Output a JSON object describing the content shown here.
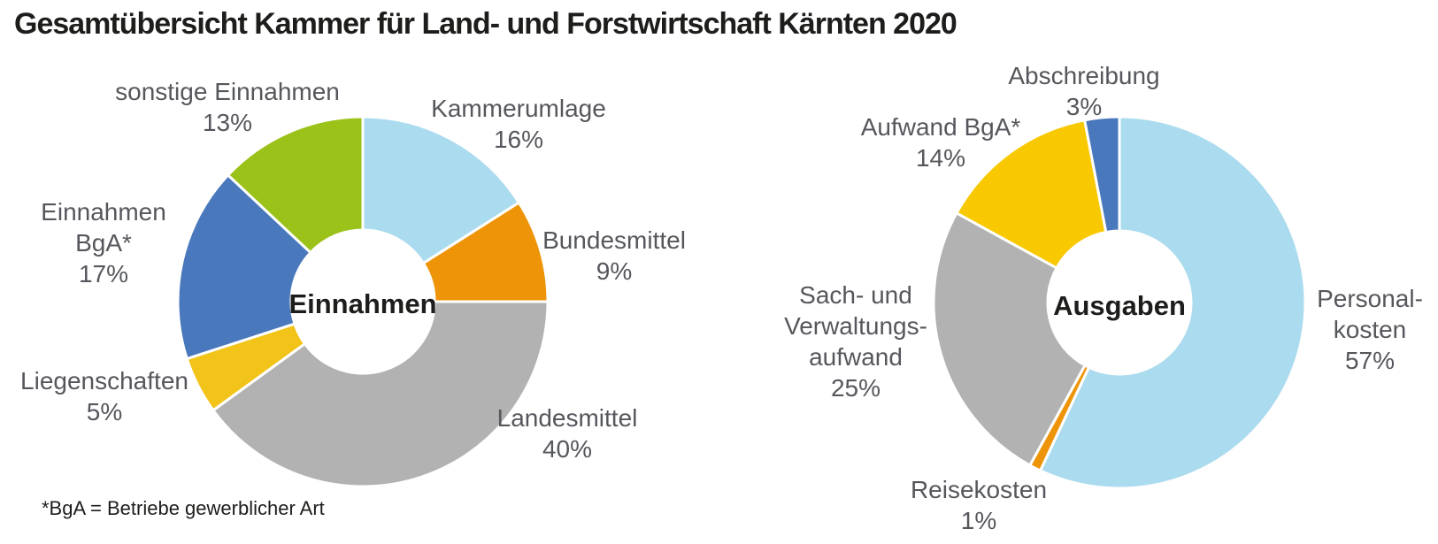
{
  "title": "Gesamtübersicht Kammer für Land- und Forstwirtschaft Kärnten 2020",
  "footnote": "*BgA = Betriebe gewerblicher Art",
  "colors": {
    "light_blue": "#abdbee",
    "orange": "#ee9408",
    "gray": "#b2b2b2",
    "yellow": "#f2c318",
    "gold": "#f8c800",
    "blue": "#4a78bc",
    "green": "#9ac219",
    "label_text": "#55575c",
    "title_text": "#1d1d1b",
    "background": "#ffffff",
    "slice_gap": "#ffffff"
  },
  "chart_data": [
    {
      "type": "pie",
      "name": "Einnahmen",
      "center_label": "Einnahmen",
      "donut": true,
      "donut_hole_ratio": 0.39,
      "start_angle_deg": 0,
      "direction": "clockwise",
      "slices": [
        {
          "label": "Kammerumlage",
          "label_lines": [
            "Kammerumlage"
          ],
          "value": 16,
          "pct_label": "16%",
          "color": "#abdbee"
        },
        {
          "label": "Bundesmittel",
          "label_lines": [
            "Bundesmittel"
          ],
          "value": 9,
          "pct_label": "9%",
          "color": "#ee9408"
        },
        {
          "label": "Landesmittel",
          "label_lines": [
            "Landesmittel"
          ],
          "value": 40,
          "pct_label": "40%",
          "color": "#b2b2b2"
        },
        {
          "label": "Liegenschaften",
          "label_lines": [
            "Liegenschaften"
          ],
          "value": 5,
          "pct_label": "5%",
          "color": "#f2c318"
        },
        {
          "label": "Einnahmen BgA*",
          "label_lines": [
            "Einnahmen",
            "BgA*"
          ],
          "value": 17,
          "pct_label": "17%",
          "color": "#4a78bc"
        },
        {
          "label": "sonstige Einnahmen",
          "label_lines": [
            "sonstige Einnahmen"
          ],
          "value": 13,
          "pct_label": "13%",
          "color": "#9ac219"
        }
      ]
    },
    {
      "type": "pie",
      "name": "Ausgaben",
      "center_label": "Ausgaben",
      "donut": true,
      "donut_hole_ratio": 0.39,
      "start_angle_deg": 0,
      "direction": "clockwise",
      "slices": [
        {
          "label": "Personalkosten",
          "label_lines": [
            "Personal-",
            "kosten"
          ],
          "value": 57,
          "pct_label": "57%",
          "color": "#abdbee"
        },
        {
          "label": "Reisekosten",
          "label_lines": [
            "Reisekosten"
          ],
          "value": 1,
          "pct_label": "1%",
          "color": "#ee9408"
        },
        {
          "label": "Sach- und Verwaltungsaufwand",
          "label_lines": [
            "Sach- und",
            "Verwaltungs-",
            "aufwand"
          ],
          "value": 25,
          "pct_label": "25%",
          "color": "#b2b2b2"
        },
        {
          "label": "Aufwand BgA*",
          "label_lines": [
            "Aufwand BgA*"
          ],
          "value": 14,
          "pct_label": "14%",
          "color": "#f8c800"
        },
        {
          "label": "Abschreibung",
          "label_lines": [
            "Abschreibung"
          ],
          "value": 3,
          "pct_label": "3%",
          "color": "#4a78bc"
        }
      ]
    }
  ]
}
